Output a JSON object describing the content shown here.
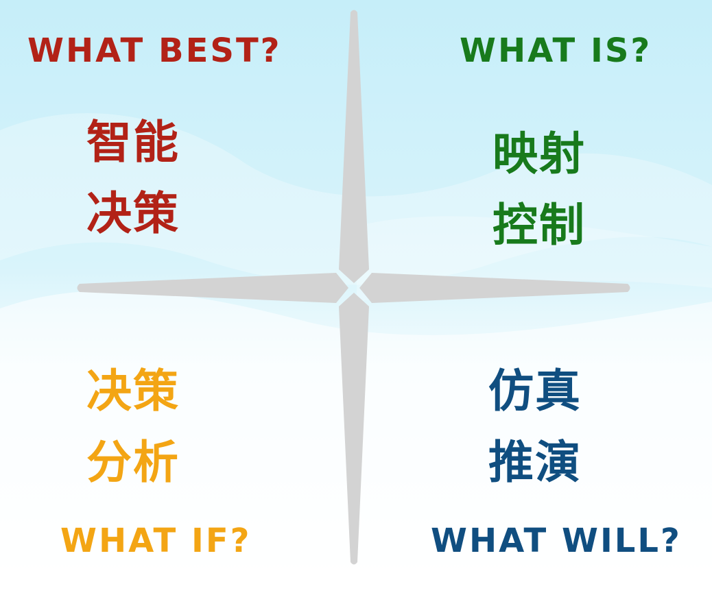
{
  "quadrants": {
    "top_left": {
      "title": "WHAT BEST?",
      "line1": "智能",
      "line2": "决策",
      "color": "#b22217"
    },
    "top_right": {
      "title": "WHAT IS?",
      "line1": "映射",
      "line2": "控制",
      "color": "#187a1c"
    },
    "bottom_left": {
      "title": "WHAT IF?",
      "line1": "决策",
      "line2": "分析",
      "color": "#f3a514"
    },
    "bottom_right": {
      "title": "WHAT WILL?",
      "line1": "仿真",
      "line2": "推演",
      "color": "#104e80"
    }
  },
  "colors": {
    "cross": "#d3d3d3",
    "sky": "#c8eef8"
  }
}
